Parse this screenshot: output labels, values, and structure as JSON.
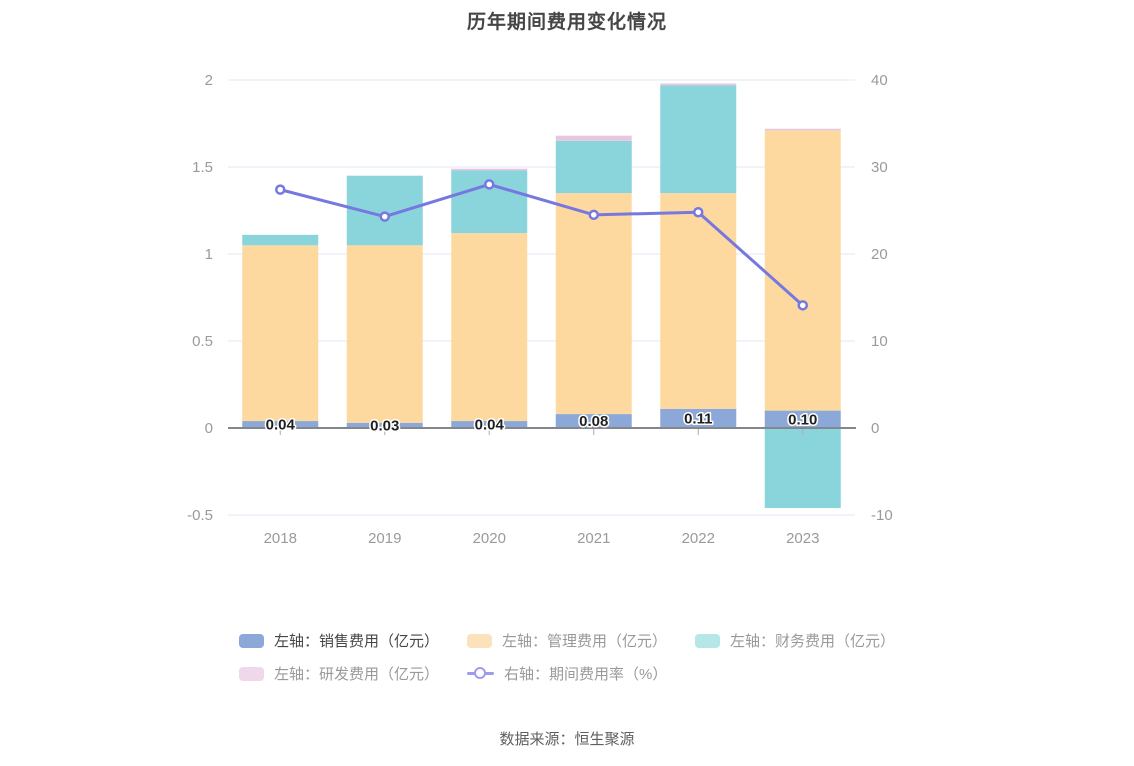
{
  "title": "历年期间费用变化情况",
  "footer": "数据来源：恒生聚源",
  "legend": {
    "items": [
      {
        "label": "左轴：销售费用（亿元）",
        "swatch_color": "#8CA8D8",
        "label_color": "#464646",
        "symbol": "rect"
      },
      {
        "label": "左轴：管理费用（亿元）",
        "swatch_color": "#FBE2BA",
        "label_color": "#999999",
        "symbol": "rect"
      },
      {
        "label": "左轴：财务费用（亿元）",
        "swatch_color": "#B5E6E8",
        "label_color": "#999999",
        "symbol": "rect"
      },
      {
        "label": "左轴：研发费用（亿元）",
        "swatch_color": "#F0D8EB",
        "label_color": "#999999",
        "symbol": "rect"
      },
      {
        "label": "右轴：期间费用率（%）",
        "swatch_color": "#9B9DEC",
        "label_color": "#999999",
        "symbol": "line"
      }
    ]
  },
  "chart_data": {
    "type": "bar",
    "subtype": "stacked-bar-with-line",
    "categories": [
      "2018",
      "2019",
      "2020",
      "2021",
      "2022",
      "2023"
    ],
    "series": [
      {
        "name": "左轴：销售费用（亿元）",
        "type": "bar",
        "axis": "left",
        "stack": true,
        "color": "#8CA8D8",
        "values": [
          0.04,
          0.03,
          0.04,
          0.08,
          0.11,
          0.1
        ],
        "value_labels": [
          "0.04",
          "0.03",
          "0.04",
          "0.08",
          "0.11",
          "0.10"
        ]
      },
      {
        "name": "左轴：管理费用（亿元）",
        "type": "bar",
        "axis": "left",
        "stack": true,
        "color": "#FDD9A0",
        "values": [
          1.01,
          1.02,
          1.08,
          1.27,
          1.24,
          1.61
        ]
      },
      {
        "name": "左轴：财务费用（亿元）",
        "type": "bar",
        "axis": "left",
        "stack": true,
        "color": "#8AD4DB",
        "values": [
          0.06,
          0.4,
          0.36,
          0.3,
          0.62,
          -0.46
        ]
      },
      {
        "name": "左轴：研发费用（亿元）",
        "type": "bar",
        "axis": "left",
        "stack": true,
        "color": "#E5C8E0",
        "values": [
          0,
          0,
          0.01,
          0.03,
          0.01,
          0.01
        ]
      },
      {
        "name": "右轴：期间费用率（%）",
        "type": "line",
        "axis": "right",
        "color": "#7678E0",
        "values": [
          27.4,
          24.3,
          28.0,
          24.5,
          24.8,
          14.1
        ]
      }
    ],
    "left_axis": {
      "ticks": [
        "2",
        "1.5",
        "1",
        "0.5",
        "0",
        "-0.5"
      ],
      "range": [
        -0.5,
        2
      ]
    },
    "right_axis": {
      "ticks": [
        "40",
        "30",
        "20",
        "10",
        "0",
        "-10"
      ],
      "range": [
        -10,
        40
      ]
    },
    "grid": true,
    "legend_position": "bottom",
    "grid_color": "#E2E7F3",
    "axis_line_color": "#84868E",
    "tick_color": "#A8ABB5"
  }
}
